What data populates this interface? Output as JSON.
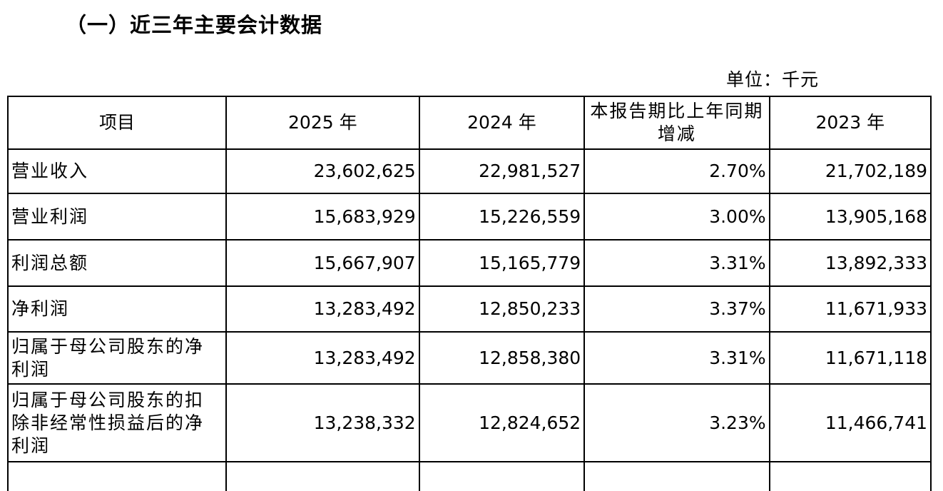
{
  "section_title": "（一）近三年主要会计数据",
  "unit_label": "单位：千元",
  "table": {
    "headers": {
      "item": "项目",
      "y2025": "2025 年",
      "y2024": "2024 年",
      "change": "本报告期比上年同期增减",
      "y2023": "2023 年"
    },
    "rows": [
      {
        "item": "营业收入",
        "y2025": "23,602,625",
        "y2024": "22,981,527",
        "change": "2.70%",
        "y2023": "21,702,189"
      },
      {
        "item": "营业利润",
        "y2025": "15,683,929",
        "y2024": "15,226,559",
        "change": "3.00%",
        "y2023": "13,905,168"
      },
      {
        "item": "利润总额",
        "y2025": "15,667,907",
        "y2024": "15,165,779",
        "change": "3.31%",
        "y2023": "13,892,333"
      },
      {
        "item": "净利润",
        "y2025": "13,283,492",
        "y2024": "12,850,233",
        "change": "3.37%",
        "y2023": "11,671,933"
      },
      {
        "item": "归属于母公司股东的净利润",
        "y2025": "13,283,492",
        "y2024": "12,858,380",
        "change": "3.31%",
        "y2023": "11,671,118"
      },
      {
        "item": "归属于母公司股东的扣除非经常性损益后的净利润",
        "y2025": "13,238,332",
        "y2024": "12,824,652",
        "change": "3.23%",
        "y2023": "11,466,741"
      }
    ]
  }
}
